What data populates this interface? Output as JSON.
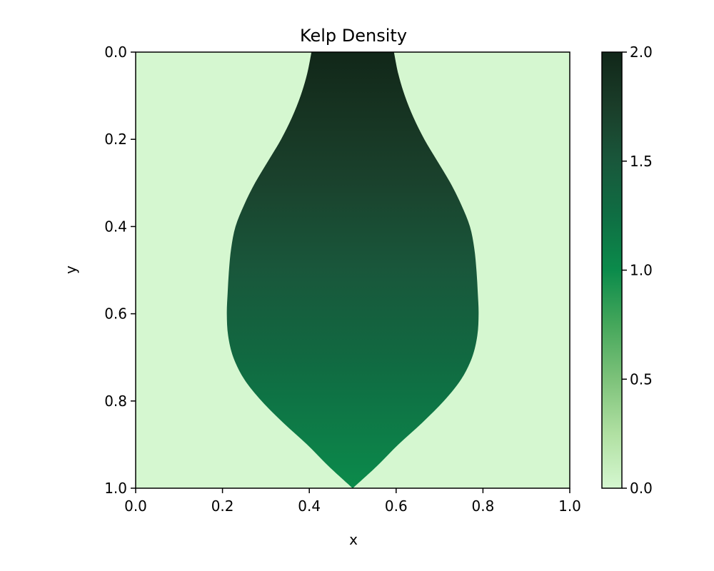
{
  "chart_data": {
    "type": "heatmap",
    "title": "Kelp Density",
    "xlabel": "x",
    "ylabel": "y",
    "xlim": [
      0.0,
      1.0
    ],
    "ylim": [
      1.0,
      0.0
    ],
    "y_axis_inverted": true,
    "grid": false,
    "x_ticks": [
      "0.0",
      "0.2",
      "0.4",
      "0.6",
      "0.8",
      "1.0"
    ],
    "y_ticks": [
      "0.0",
      "0.2",
      "0.4",
      "0.6",
      "0.8",
      "1.0"
    ],
    "colorbar": {
      "range": [
        0.0,
        2.0
      ],
      "ticks": [
        "0.0",
        "0.5",
        "1.0",
        "1.5",
        "2.0"
      ],
      "colormap": "Greens-like",
      "stops": [
        {
          "value": 0.0,
          "color": "#d5f7d0"
        },
        {
          "value": 0.25,
          "color": "#b0e0a2"
        },
        {
          "value": 0.5,
          "color": "#7dc27a"
        },
        {
          "value": 0.75,
          "color": "#45a75b"
        },
        {
          "value": 1.0,
          "color": "#0b8b4b"
        },
        {
          "value": 1.25,
          "color": "#0f6e43"
        },
        {
          "value": 1.5,
          "color": "#19573b"
        },
        {
          "value": 1.75,
          "color": "#1a3d29"
        },
        {
          "value": 2.0,
          "color": "#112719"
        }
      ]
    },
    "background_value": 0.0,
    "region": {
      "description_values": "nonzero density inside leaf-shaped region; value decreases linearly from top (y=0) to bottom (y=1)",
      "value_at_y0": 2.0,
      "value_at_y1": 1.0,
      "boundary_half_width": [
        {
          "y": 0.0,
          "half_width": 0.095
        },
        {
          "y": 0.05,
          "half_width": 0.105
        },
        {
          "y": 0.1,
          "half_width": 0.12
        },
        {
          "y": 0.15,
          "half_width": 0.14
        },
        {
          "y": 0.2,
          "half_width": 0.165
        },
        {
          "y": 0.25,
          "half_width": 0.195
        },
        {
          "y": 0.3,
          "half_width": 0.225
        },
        {
          "y": 0.35,
          "half_width": 0.25
        },
        {
          "y": 0.4,
          "half_width": 0.27
        },
        {
          "y": 0.45,
          "half_width": 0.28
        },
        {
          "y": 0.5,
          "half_width": 0.285
        },
        {
          "y": 0.55,
          "half_width": 0.288
        },
        {
          "y": 0.6,
          "half_width": 0.29
        },
        {
          "y": 0.65,
          "half_width": 0.287
        },
        {
          "y": 0.7,
          "half_width": 0.275
        },
        {
          "y": 0.75,
          "half_width": 0.25
        },
        {
          "y": 0.8,
          "half_width": 0.21
        },
        {
          "y": 0.85,
          "half_width": 0.16
        },
        {
          "y": 0.9,
          "half_width": 0.105
        },
        {
          "y": 0.95,
          "half_width": 0.055
        },
        {
          "y": 1.0,
          "half_width": 0.0
        }
      ],
      "center_x": 0.5
    }
  }
}
